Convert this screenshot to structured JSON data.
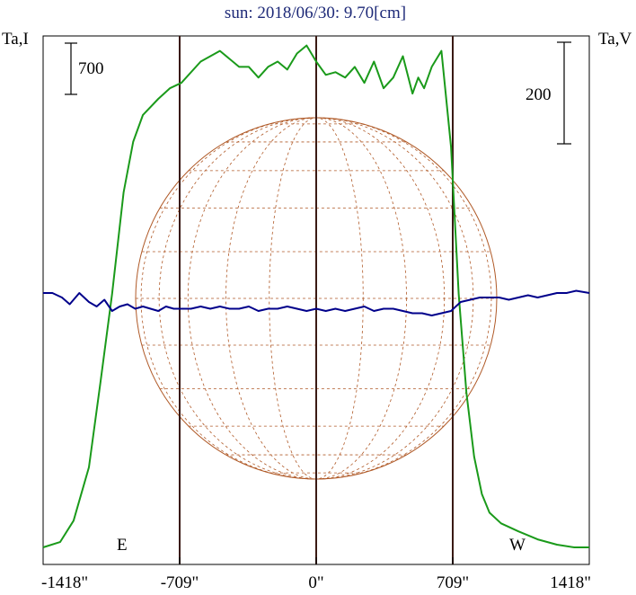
{
  "chart_data": {
    "type": "line",
    "title": "sun: 2018/06/30: 9.70[cm]",
    "left_axis_label": "Ta,I",
    "right_axis_label": "Ta,V",
    "left_scale_bar_label": "700",
    "right_scale_bar_label": "200",
    "x_ticks": [
      {
        "value": -1418,
        "label": "-1418\""
      },
      {
        "value": -709,
        "label": "-709\""
      },
      {
        "value": 0,
        "label": "0\""
      },
      {
        "value": 709,
        "label": "709\""
      },
      {
        "value": 1418,
        "label": "1418\""
      }
    ],
    "limb_labels": {
      "east": "E",
      "west": "W"
    },
    "xlim": [
      -1418,
      1418
    ],
    "vertical_lines_x": [
      -709,
      0,
      709
    ],
    "grid": false,
    "series": [
      {
        "key": "I",
        "color": "#1a9a1a",
        "x": [
          -1418,
          -1330,
          -1260,
          -1180,
          -1120,
          -1060,
          -1000,
          -950,
          -900,
          -820,
          -760,
          -700,
          -600,
          -500,
          -400,
          -350,
          -300,
          -250,
          -200,
          -150,
          -100,
          -50,
          0,
          50,
          100,
          150,
          200,
          250,
          300,
          350,
          400,
          450,
          500,
          530,
          560,
          600,
          650,
          700,
          740,
          780,
          820,
          860,
          900,
          960,
          1050,
          1150,
          1250,
          1340,
          1418
        ],
        "y": [
          0.0,
          0.02,
          0.1,
          0.3,
          0.62,
          0.95,
          1.33,
          1.52,
          1.62,
          1.68,
          1.72,
          1.74,
          1.82,
          1.86,
          1.8,
          1.8,
          1.76,
          1.8,
          1.82,
          1.79,
          1.85,
          1.88,
          1.82,
          1.77,
          1.78,
          1.76,
          1.8,
          1.74,
          1.82,
          1.72,
          1.76,
          1.84,
          1.7,
          1.76,
          1.72,
          1.8,
          1.86,
          1.5,
          0.95,
          0.58,
          0.34,
          0.2,
          0.13,
          0.09,
          0.06,
          0.03,
          0.01,
          0.0,
          0.0
        ]
      },
      {
        "key": "V",
        "color": "#00008b",
        "x": [
          -1418,
          -1370,
          -1320,
          -1280,
          -1230,
          -1180,
          -1140,
          -1100,
          -1060,
          -1020,
          -980,
          -940,
          -900,
          -860,
          -820,
          -780,
          -740,
          -700,
          -650,
          -600,
          -550,
          -500,
          -450,
          -400,
          -350,
          -300,
          -250,
          -200,
          -150,
          -100,
          -50,
          0,
          50,
          100,
          150,
          200,
          250,
          300,
          350,
          400,
          450,
          500,
          550,
          600,
          650,
          700,
          750,
          800,
          850,
          900,
          950,
          1000,
          1050,
          1100,
          1150,
          1200,
          1250,
          1300,
          1350,
          1418
        ],
        "y": [
          0.0,
          0.0,
          -0.02,
          -0.05,
          0.0,
          -0.04,
          -0.06,
          -0.03,
          -0.08,
          -0.06,
          -0.05,
          -0.07,
          -0.06,
          -0.07,
          -0.08,
          -0.06,
          -0.07,
          -0.07,
          -0.07,
          -0.06,
          -0.07,
          -0.06,
          -0.07,
          -0.07,
          -0.06,
          -0.08,
          -0.07,
          -0.07,
          -0.06,
          -0.07,
          -0.08,
          -0.07,
          -0.08,
          -0.07,
          -0.08,
          -0.07,
          -0.06,
          -0.08,
          -0.07,
          -0.07,
          -0.08,
          -0.09,
          -0.09,
          -0.1,
          -0.09,
          -0.08,
          -0.04,
          -0.03,
          -0.02,
          -0.02,
          -0.02,
          -0.03,
          -0.02,
          -0.01,
          -0.02,
          -0.01,
          0.0,
          0.0,
          0.01,
          0.0
        ]
      }
    ]
  }
}
